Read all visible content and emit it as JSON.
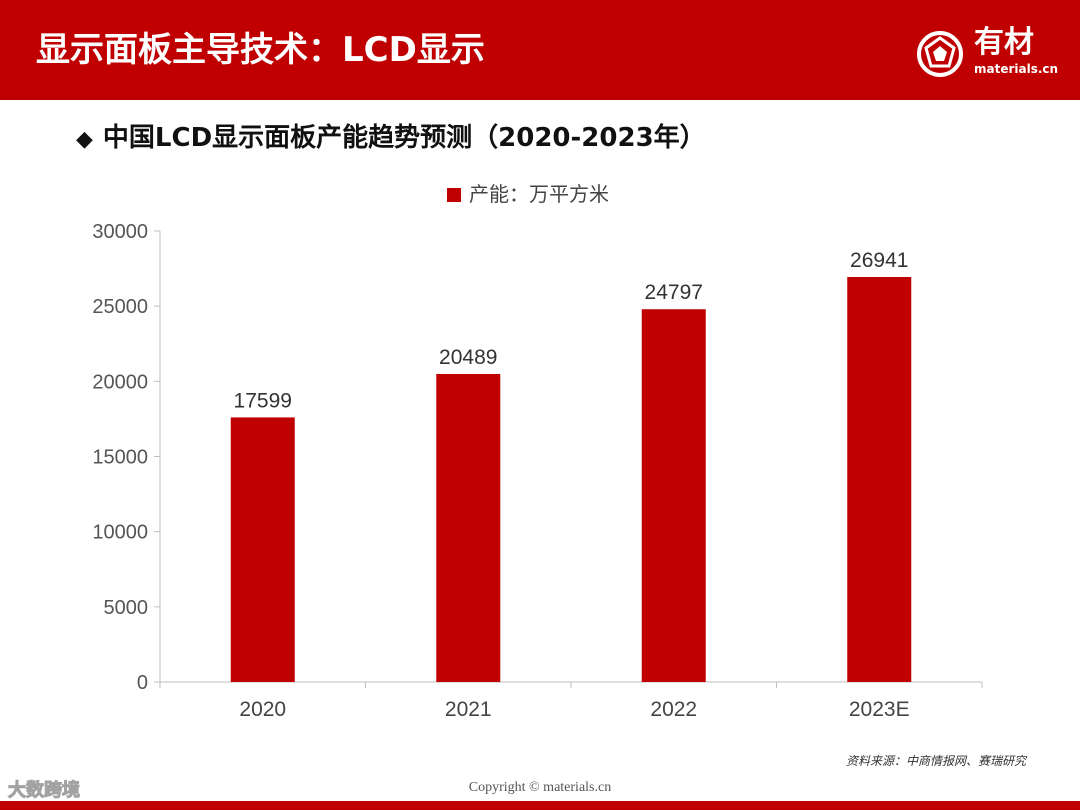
{
  "header": {
    "title": "显示面板主导技术：LCD显示",
    "logo_text": "有材",
    "logo_domain": "materials.cn"
  },
  "subtitle": {
    "bullet": "◆",
    "text": "中国LCD显示面板产能趋势预测（2020-2023年）"
  },
  "footer": {
    "source": "资料来源：中商情报网、赛瑞研究",
    "copyright": "Copyright © materials.cn",
    "corner_watermark": "大数跨境"
  },
  "colors": {
    "brand": "#c00000",
    "bar": "#c00000"
  },
  "chart_data": {
    "type": "bar",
    "categories": [
      "2020",
      "2021",
      "2022",
      "2023E"
    ],
    "series": [
      {
        "name": "产能：万平方米",
        "values": [
          17599,
          20489,
          24797,
          26941
        ]
      }
    ],
    "data_labels": [
      "17599",
      "20489",
      "24797",
      "26941"
    ],
    "y_ticks": [
      "0",
      "5000",
      "10000",
      "15000",
      "20000",
      "25000",
      "30000"
    ],
    "ylim": [
      0,
      30000
    ],
    "title": "",
    "xlabel": "",
    "ylabel": "",
    "grid": false,
    "legend_position": "top-center"
  }
}
